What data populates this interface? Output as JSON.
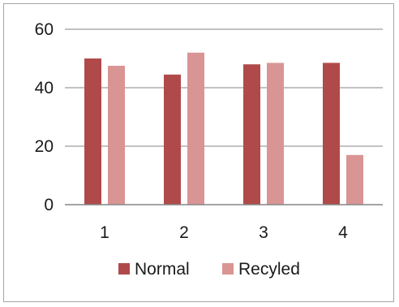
{
  "chart_data": {
    "type": "bar",
    "categories": [
      "1",
      "2",
      "3",
      "4"
    ],
    "series": [
      {
        "name": "Normal",
        "values": [
          50,
          44.5,
          48,
          48.5
        ],
        "color": "#b04a4a"
      },
      {
        "name": "Recyled",
        "values": [
          47.5,
          52,
          48.5,
          17
        ],
        "color": "#d99594"
      }
    ],
    "title": "",
    "xlabel": "",
    "ylabel": "",
    "ylim": [
      0,
      60
    ],
    "yticks": [
      "0",
      "20",
      "40",
      "60"
    ],
    "grid": true,
    "legend": "bottom"
  }
}
